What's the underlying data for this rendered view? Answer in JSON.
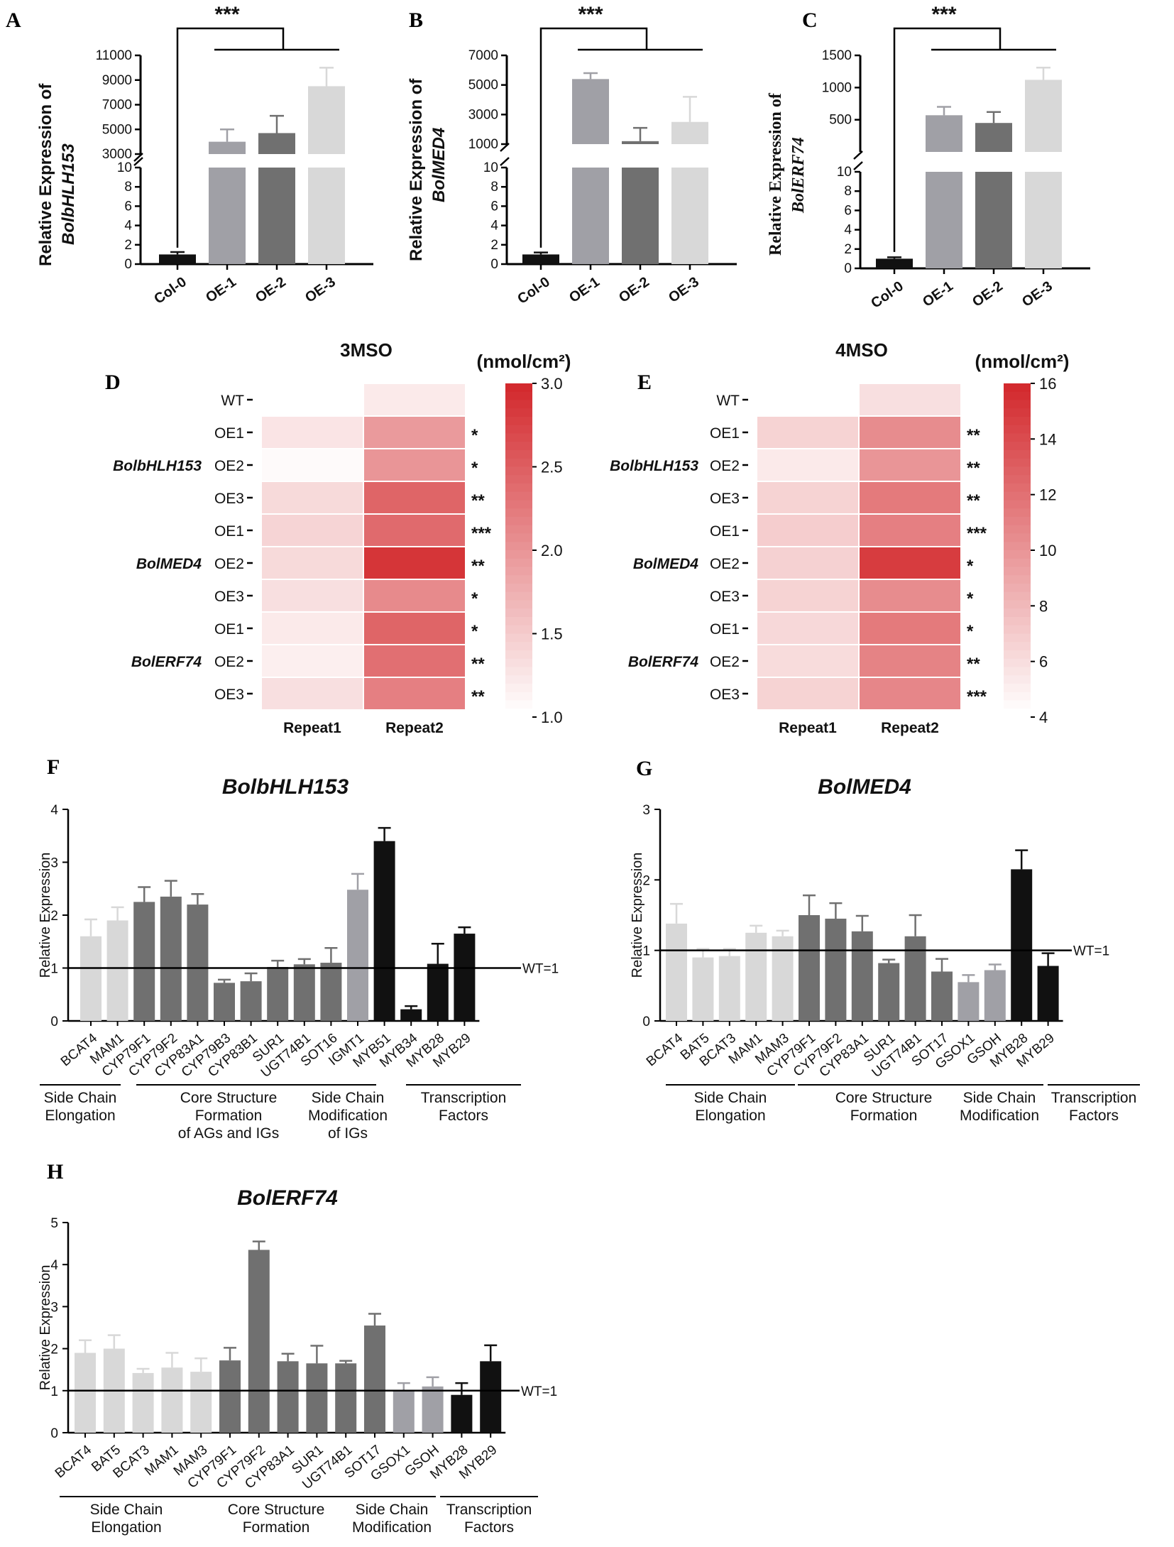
{
  "colors": {
    "c0": "#111111",
    "c1": "#a0a0a6",
    "c2": "#707070",
    "c3": "#d8d8d8",
    "hm_low": "#ffffff",
    "hm_high": "#d32a2e"
  },
  "chart_data": [
    {
      "type": "bar",
      "panel": "A",
      "ylabel_line1": "Relative Expression of",
      "ylabel_line2": "BolbHLH153",
      "categories": [
        "Col-0",
        "OE-1",
        "OE-2",
        "OE-3"
      ],
      "values": [
        1,
        4000,
        4700,
        8500
      ],
      "errors": [
        0.25,
        1000,
        1400,
        1500
      ],
      "lower_ticks": [
        "0",
        "2",
        "4",
        "6",
        "8",
        "10"
      ],
      "upper_ticks": [
        "3000",
        "5000",
        "7000",
        "9000",
        "11000"
      ],
      "significance": "***"
    },
    {
      "type": "bar",
      "panel": "B",
      "ylabel_line1": "Relative Expression of",
      "ylabel_line2": "BolMED4",
      "categories": [
        "Col-0",
        "OE-1",
        "OE-2",
        "OE-3"
      ],
      "values": [
        1,
        5400,
        1200,
        2500
      ],
      "errors": [
        0.2,
        400,
        900,
        1700
      ],
      "lower_ticks": [
        "0",
        "2",
        "4",
        "6",
        "8",
        "10"
      ],
      "upper_ticks": [
        "1000",
        "3000",
        "5000",
        "7000"
      ],
      "significance": "***"
    },
    {
      "type": "bar",
      "panel": "C",
      "ylabel_line1": "Relative Expression of",
      "ylabel_line2": "BolERF74",
      "categories": [
        "Col-0",
        "OE-1",
        "OE-2",
        "OE-3"
      ],
      "values": [
        1,
        570,
        450,
        1120
      ],
      "errors": [
        0.15,
        130,
        170,
        190
      ],
      "lower_ticks": [
        "0",
        "2",
        "4",
        "6",
        "8",
        "10"
      ],
      "upper_ticks": [
        "500",
        "1000",
        "1500"
      ],
      "significance": "***"
    },
    {
      "type": "heatmap",
      "panel": "D",
      "title": "3MSO",
      "unit": "(nmol/cm²)",
      "columns": [
        "Repeat1",
        "Repeat2"
      ],
      "colorbar_ticks": [
        "3.0",
        "2.5",
        "2.0",
        "1.5",
        "1.0"
      ],
      "rows": [
        {
          "label": "WT",
          "values": [
            null,
            1.2
          ],
          "sig": ""
        },
        {
          "label": "OE1",
          "values": [
            1.25,
            1.95
          ],
          "sig": "*"
        },
        {
          "label": "OE2",
          "values": [
            1.05,
            2.0
          ],
          "sig": "*"
        },
        {
          "label": "OE3",
          "values": [
            1.35,
            2.45
          ],
          "sig": "**"
        },
        {
          "label": "OE1",
          "values": [
            1.4,
            2.4
          ],
          "sig": "***"
        },
        {
          "label": "OE2",
          "values": [
            1.35,
            2.9
          ],
          "sig": "**"
        },
        {
          "label": "OE3",
          "values": [
            1.3,
            2.1
          ],
          "sig": "*"
        },
        {
          "label": "OE1",
          "values": [
            1.2,
            2.45
          ],
          "sig": "*"
        },
        {
          "label": "OE2",
          "values": [
            1.15,
            2.35
          ],
          "sig": "**"
        },
        {
          "label": "OE3",
          "values": [
            1.3,
            2.2
          ],
          "sig": "**"
        }
      ],
      "groups": [
        "BolbHLH153",
        "BolMED4",
        "BolERF74"
      ]
    },
    {
      "type": "heatmap",
      "panel": "E",
      "title": "4MSO",
      "unit": "(nmol/cm²)",
      "columns": [
        "Repeat1",
        "Repeat2"
      ],
      "colorbar_ticks": [
        "16",
        "14",
        "12",
        "10",
        "8",
        "6",
        "4"
      ],
      "rows": [
        {
          "label": "WT",
          "values": [
            null,
            5.8
          ],
          "sig": ""
        },
        {
          "label": "OE1",
          "values": [
            6.5,
            10.5
          ],
          "sig": "**"
        },
        {
          "label": "OE2",
          "values": [
            5.2,
            10.0
          ],
          "sig": "**"
        },
        {
          "label": "OE3",
          "values": [
            6.5,
            11.5
          ],
          "sig": "**"
        },
        {
          "label": "OE1",
          "values": [
            6.8,
            11.2
          ],
          "sig": "***"
        },
        {
          "label": "OE2",
          "values": [
            6.6,
            15.0
          ],
          "sig": "*"
        },
        {
          "label": "OE3",
          "values": [
            6.5,
            10.5
          ],
          "sig": "*"
        },
        {
          "label": "OE1",
          "values": [
            6.2,
            11.5
          ],
          "sig": "*"
        },
        {
          "label": "OE2",
          "values": [
            6.0,
            11.0
          ],
          "sig": "**"
        },
        {
          "label": "OE3",
          "values": [
            6.5,
            10.8
          ],
          "sig": "***"
        }
      ],
      "groups": [
        "BolbHLH153",
        "BolMED4",
        "BolERF74"
      ]
    },
    {
      "type": "bar",
      "panel": "F",
      "title": "BolbHLH153",
      "ylabel": "Relative Expression",
      "ylim": [
        0,
        4
      ],
      "ref_label": "WT=1",
      "yticks": [
        "0",
        "1",
        "2",
        "3",
        "4"
      ],
      "categories": [
        "BCAT4",
        "MAM1",
        "CYP79F1",
        "CYP79F2",
        "CYP83A1",
        "CYP79B3",
        "CYP83B1",
        "SUR1",
        "UGT74B1",
        "SOT16",
        "IGMT1",
        "MYB51",
        "MYB34",
        "MYB28",
        "MYB29"
      ],
      "values": [
        1.6,
        1.9,
        2.25,
        2.35,
        2.2,
        0.72,
        0.75,
        1.02,
        1.07,
        1.1,
        2.48,
        3.4,
        0.22,
        1.08,
        1.65
      ],
      "errors": [
        0.32,
        0.25,
        0.28,
        0.3,
        0.2,
        0.06,
        0.15,
        0.12,
        0.1,
        0.28,
        0.3,
        0.25,
        0.06,
        0.38,
        0.12
      ],
      "bar_color_keys": [
        "c3",
        "c3",
        "c2",
        "c2",
        "c2",
        "c2",
        "c2",
        "c2",
        "c2",
        "c2",
        "c1",
        "c0",
        "c0",
        "c0",
        "c0"
      ],
      "groups": [
        {
          "line1": "Side Chain",
          "line2": "Elongation",
          "line3": ""
        },
        {
          "line1": "Core Structure",
          "line2": "Formation",
          "line3": "of AGs and IGs"
        },
        {
          "line1": "Side Chain",
          "line2": "Modification",
          "line3": "of IGs"
        },
        {
          "line1": "Transcription",
          "line2": "Factors",
          "line3": ""
        }
      ]
    },
    {
      "type": "bar",
      "panel": "G",
      "title": "BolMED4",
      "ylabel": "Relative Expression",
      "ylim": [
        0,
        3
      ],
      "ref_label": "WT=1",
      "yticks": [
        "0",
        "1",
        "2",
        "3"
      ],
      "categories": [
        "BCAT4",
        "BAT5",
        "BCAT3",
        "MAM1",
        "MAM3",
        "CYP79F1",
        "CYP79F2",
        "CYP83A1",
        "SUR1",
        "UGT74B1",
        "SOT17",
        "GSOX1",
        "GSOH",
        "MYB28",
        "MYB29"
      ],
      "values": [
        1.38,
        0.9,
        0.92,
        1.25,
        1.2,
        1.5,
        1.45,
        1.27,
        0.82,
        1.2,
        0.7,
        0.55,
        0.72,
        2.15,
        0.78
      ],
      "errors": [
        0.28,
        0.12,
        0.1,
        0.1,
        0.08,
        0.28,
        0.22,
        0.22,
        0.05,
        0.3,
        0.18,
        0.1,
        0.08,
        0.27,
        0.18
      ],
      "bar_color_keys": [
        "c3",
        "c3",
        "c3",
        "c3",
        "c3",
        "c2",
        "c2",
        "c2",
        "c2",
        "c2",
        "c2",
        "c1",
        "c1",
        "c0",
        "c0"
      ],
      "groups": [
        {
          "line1": "Side Chain",
          "line2": "Elongation",
          "line3": ""
        },
        {
          "line1": "Core Structure",
          "line2": "Formation",
          "line3": ""
        },
        {
          "line1": "Side Chain",
          "line2": "Modification",
          "line3": ""
        },
        {
          "line1": "Transcription",
          "line2": "Factors",
          "line3": ""
        }
      ]
    },
    {
      "type": "bar",
      "panel": "H",
      "title": "BolERF74",
      "ylabel": "Relative Expression",
      "ylim": [
        0,
        5
      ],
      "ref_label": "WT=1",
      "yticks": [
        "0",
        "1",
        "2",
        "3",
        "4",
        "5"
      ],
      "categories": [
        "BCAT4",
        "BAT5",
        "BCAT3",
        "MAM1",
        "MAM3",
        "CYP79F1",
        "CYP79F2",
        "CYP83A1",
        "SUR1",
        "UGT74B1",
        "SOT17",
        "GSOX1",
        "GSOH",
        "MYB28",
        "MYB29"
      ],
      "values": [
        1.9,
        2.0,
        1.42,
        1.55,
        1.45,
        1.72,
        4.35,
        1.7,
        1.65,
        1.65,
        2.55,
        0.98,
        1.1,
        0.9,
        1.7
      ],
      "errors": [
        0.3,
        0.32,
        0.1,
        0.35,
        0.32,
        0.3,
        0.2,
        0.18,
        0.42,
        0.06,
        0.28,
        0.2,
        0.22,
        0.28,
        0.38
      ],
      "bar_color_keys": [
        "c3",
        "c3",
        "c3",
        "c3",
        "c3",
        "c2",
        "c2",
        "c2",
        "c2",
        "c2",
        "c2",
        "c1",
        "c1",
        "c0",
        "c0"
      ],
      "groups": [
        {
          "line1": "Side Chain",
          "line2": "Elongation",
          "line3": ""
        },
        {
          "line1": "Core Structure",
          "line2": "Formation",
          "line3": ""
        },
        {
          "line1": "Side Chain",
          "line2": "Modification",
          "line3": ""
        },
        {
          "line1": "Transcription",
          "line2": "Factors",
          "line3": ""
        }
      ]
    }
  ]
}
